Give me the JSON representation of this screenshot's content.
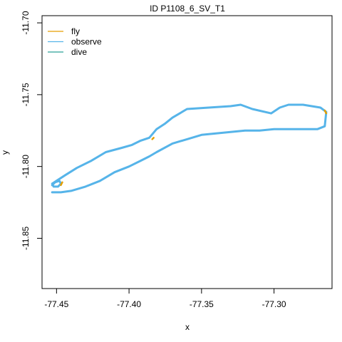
{
  "chart_data": {
    "type": "line",
    "title": "ID P1108_6_SV_T1",
    "xlabel": "x",
    "ylabel": "y",
    "xlim": [
      -77.46,
      -77.26
    ],
    "ylim": [
      -11.885,
      -11.695
    ],
    "x_ticks": [
      -77.45,
      -77.4,
      -77.35,
      -77.3
    ],
    "x_tick_labels": [
      "-77.45",
      "-77.40",
      "-77.35",
      "-77.30"
    ],
    "y_ticks": [
      -11.7,
      -11.75,
      -11.8,
      -11.85
    ],
    "y_tick_labels": [
      "-11.70",
      "-11.75",
      "-11.80",
      "-11.85"
    ],
    "grid": false,
    "legend": {
      "position": "top-left",
      "entries": [
        {
          "name": "fly",
          "color": "#E69F00"
        },
        {
          "name": "observe",
          "color": "#56B4E9"
        },
        {
          "name": "dive",
          "color": "#2AA198"
        }
      ]
    },
    "series": [
      {
        "name": "observe",
        "color": "#56B4E9",
        "x": [
          -77.453,
          -77.447,
          -77.44,
          -77.43,
          -77.42,
          -77.41,
          -77.4,
          -77.392,
          -77.386,
          -77.381,
          -77.37,
          -77.36,
          -77.35,
          -77.34,
          -77.33,
          -77.32,
          -77.31,
          -77.3,
          -77.29,
          -77.28,
          -77.27,
          -77.265,
          -77.264,
          -77.268,
          -77.28,
          -77.29,
          -77.296,
          -77.302,
          -77.315,
          -77.323,
          -77.33,
          -77.345,
          -77.36,
          -77.37,
          -77.375,
          -77.381,
          -77.386,
          -77.392,
          -77.398,
          -77.405,
          -77.416,
          -77.426,
          -77.436,
          -77.444,
          -77.45,
          -77.453,
          -77.452,
          -77.449,
          -77.447,
          -77.448,
          -77.451,
          -77.453
        ],
        "y": [
          -11.818,
          -11.818,
          -11.817,
          -11.814,
          -11.81,
          -11.804,
          -11.8,
          -11.796,
          -11.793,
          -11.79,
          -11.784,
          -11.781,
          -11.778,
          -11.777,
          -11.776,
          -11.775,
          -11.775,
          -11.774,
          -11.774,
          -11.774,
          -11.774,
          -11.772,
          -11.762,
          -11.759,
          -11.757,
          -11.757,
          -11.759,
          -11.763,
          -11.76,
          -11.757,
          -11.758,
          -11.759,
          -11.76,
          -11.766,
          -11.77,
          -11.774,
          -11.78,
          -11.782,
          -11.785,
          -11.787,
          -11.79,
          -11.796,
          -11.801,
          -11.806,
          -11.81,
          -11.812,
          -11.814,
          -11.814,
          -11.812,
          -11.81,
          -11.811,
          -11.813
        ]
      },
      {
        "name": "fly",
        "color": "#E69F00",
        "x": [
          -77.265,
          -77.264,
          -77.384,
          -77.383,
          -77.447,
          -77.446
        ],
        "y": [
          -11.761,
          -11.763,
          -11.781,
          -11.78,
          -11.813,
          -11.811
        ]
      }
    ]
  }
}
